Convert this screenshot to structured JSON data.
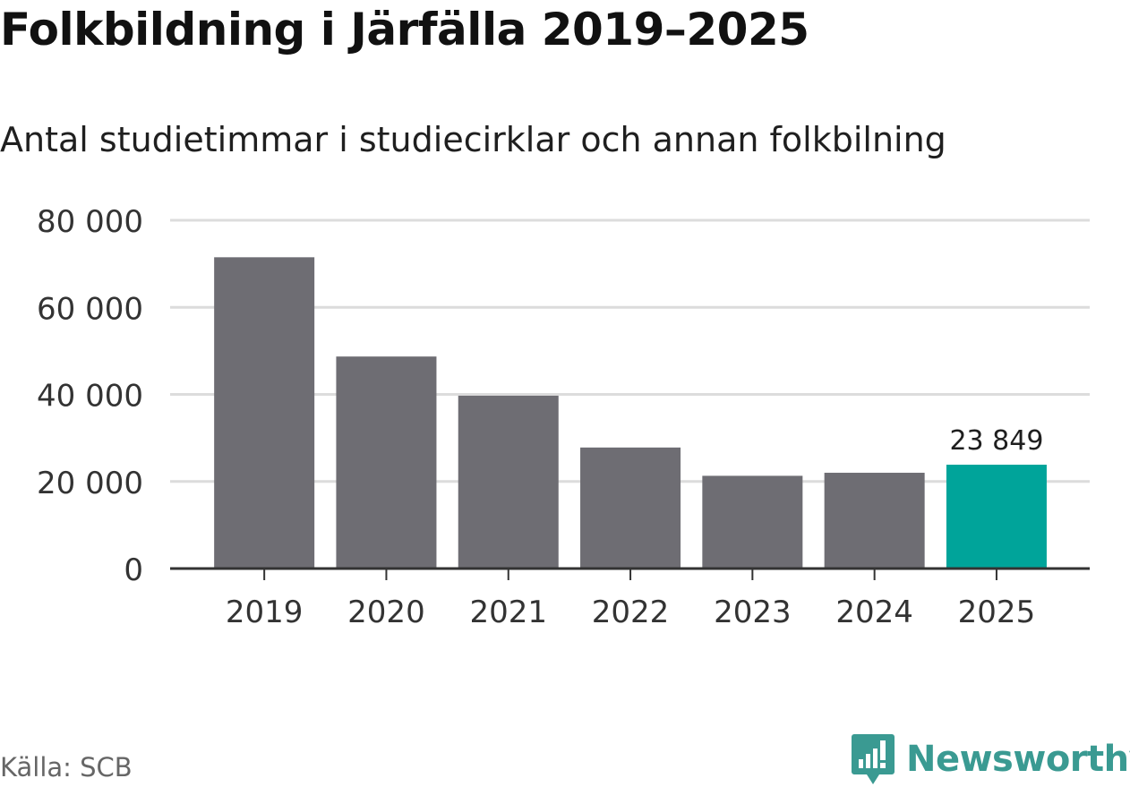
{
  "header": {
    "title": "Folkbildning i Järfälla 2019–2025",
    "subtitle": "Antal studietimmar i studiecirklar och annan folkbilning"
  },
  "footer": {
    "source": "Källa: SCB",
    "brand": "Newsworthy"
  },
  "colors": {
    "bar": "#6e6d73",
    "highlight": "#00a49a",
    "grid": "#dcdcdc",
    "axis": "#333333",
    "brand": "#3a9a92"
  },
  "chart_data": {
    "type": "bar",
    "title": "Folkbildning i Järfälla 2019–2025",
    "subtitle": "Antal studietimmar i studiecirklar och annan folkbilning",
    "xlabel": "",
    "ylabel": "",
    "categories": [
      "2019",
      "2020",
      "2021",
      "2022",
      "2023",
      "2024",
      "2025"
    ],
    "values": [
      71500,
      48700,
      39700,
      27800,
      21300,
      22000,
      23849
    ],
    "highlight_index": 6,
    "data_labels": [
      {
        "index": 6,
        "text": "23 849"
      }
    ],
    "ylim": [
      0,
      80000
    ],
    "yticks": [
      0,
      20000,
      40000,
      60000,
      80000
    ],
    "ytick_labels": [
      "0",
      "20 000",
      "40 000",
      "60 000",
      "80 000"
    ],
    "grid": true,
    "legend": "none"
  }
}
